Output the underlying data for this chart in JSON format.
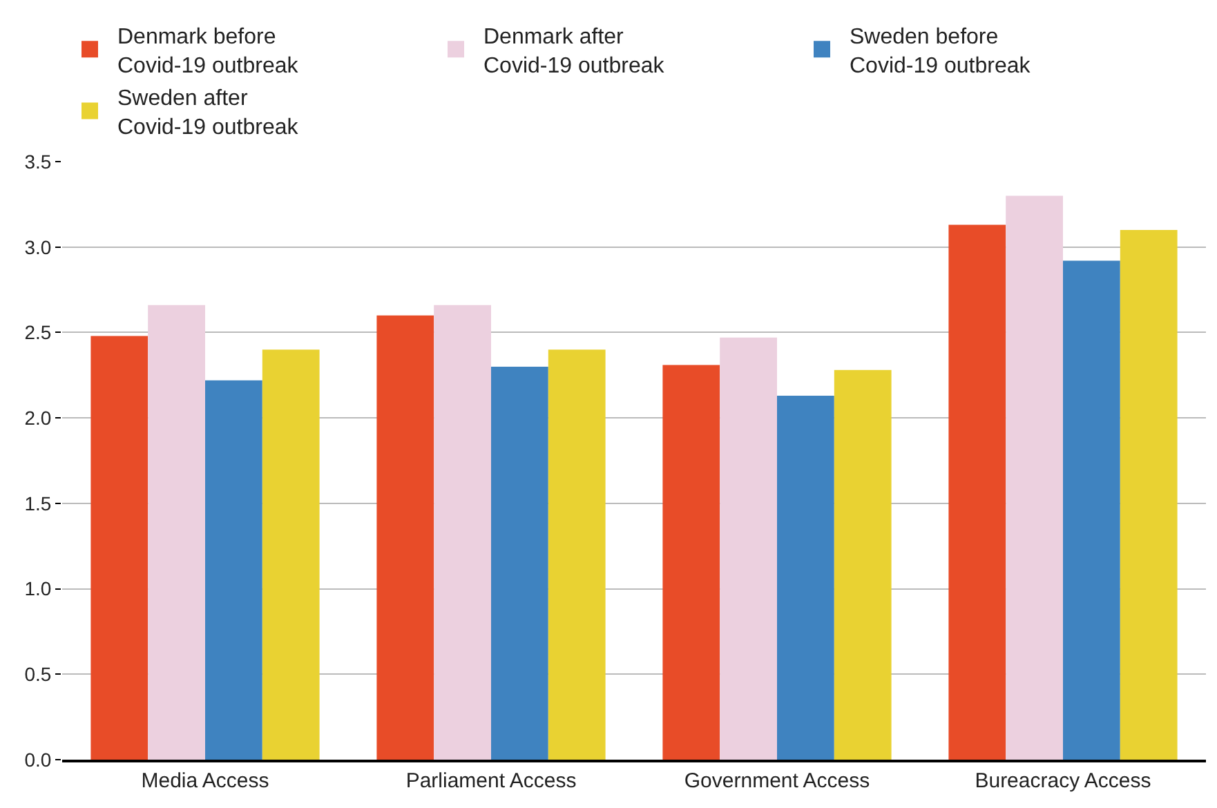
{
  "chart_data": {
    "type": "bar",
    "categories": [
      "Media Access",
      "Parliament Access",
      "Government Access",
      "Bureacracy Access"
    ],
    "series": [
      {
        "name": "Denmark before\nCovid-19 outbreak",
        "color": "#e84c28",
        "values": [
          2.48,
          2.6,
          2.31,
          3.13
        ]
      },
      {
        "name": "Denmark after\nCovid-19 outbreak",
        "color": "#ecd0df",
        "values": [
          2.66,
          2.66,
          2.47,
          3.3
        ]
      },
      {
        "name": "Sweden before\nCovid-19 outbreak",
        "color": "#3f83c0",
        "values": [
          2.22,
          2.3,
          2.13,
          2.92
        ]
      },
      {
        "name": "Sweden after\nCovid-19 outbreak",
        "color": "#e9d232",
        "values": [
          2.4,
          2.4,
          2.28,
          3.1
        ]
      }
    ],
    "ylim": [
      0,
      3.5
    ],
    "yticks": [
      {
        "value": 0,
        "label": "0.0"
      },
      {
        "value": 0.5,
        "label": "0.5"
      },
      {
        "value": 1,
        "label": "1.0"
      },
      {
        "value": 1.5,
        "label": "1.5"
      },
      {
        "value": 2,
        "label": "2.0"
      },
      {
        "value": 2.5,
        "label": "2.5"
      },
      {
        "value": 3,
        "label": "3.0"
      },
      {
        "value": 3.5,
        "label": "3.5"
      }
    ],
    "grid": "y",
    "legend": "top"
  }
}
